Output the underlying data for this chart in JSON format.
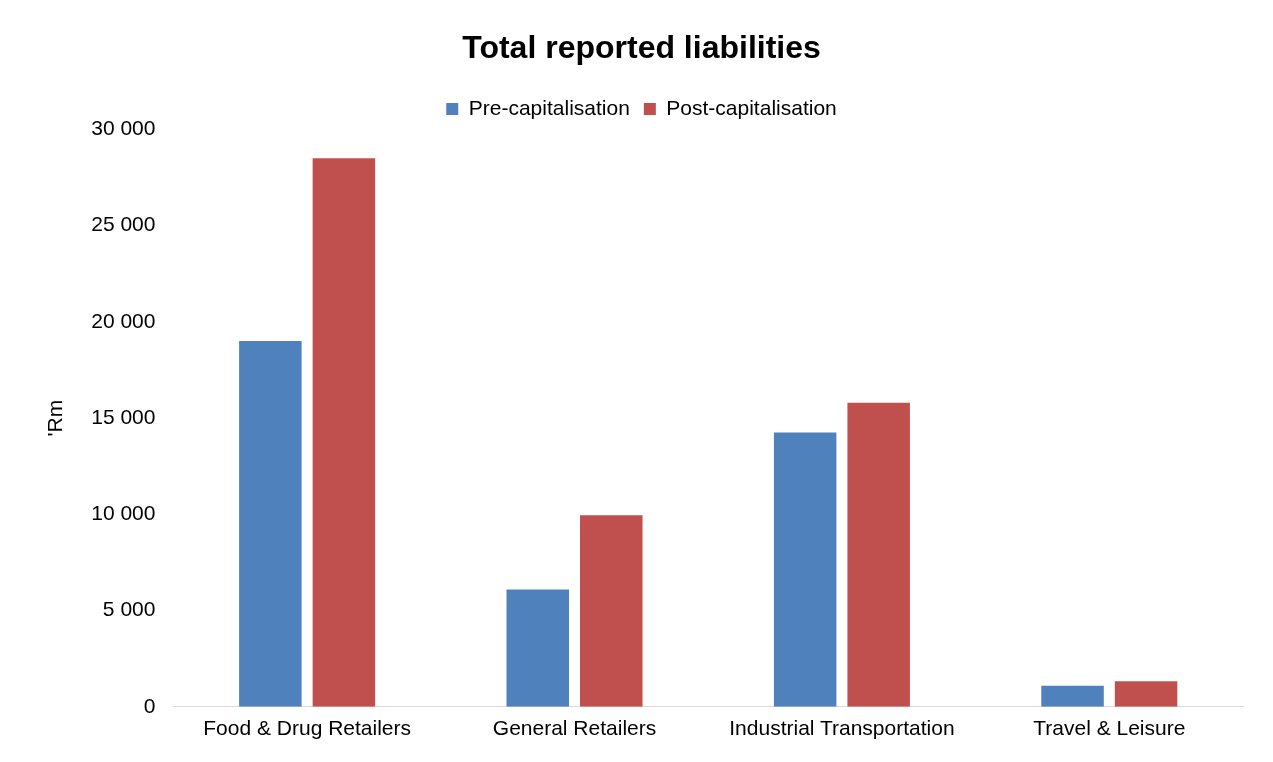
{
  "chart_data": {
    "type": "bar",
    "title": "Total reported liabilities",
    "ylabel": "'Rm",
    "categories": [
      "Food & Drug Retailers",
      "General Retailers",
      "Industrial Transportation",
      "Travel & Leisure"
    ],
    "series": [
      {
        "name": "Pre-capitalisation",
        "color": "#4f81bd",
        "values": [
          19000,
          6100,
          14250,
          1100
        ]
      },
      {
        "name": "Post-capitalisation",
        "color": "#c0504d",
        "values": [
          28500,
          9950,
          15800,
          1330
        ]
      }
    ],
    "ylim": [
      0,
      30000
    ],
    "yticks": [
      {
        "value": 0,
        "label": "0"
      },
      {
        "value": 5000,
        "label": "5 000"
      },
      {
        "value": 10000,
        "label": "10 000"
      },
      {
        "value": 15000,
        "label": "15 000"
      },
      {
        "value": 20000,
        "label": "20 000"
      },
      {
        "value": 25000,
        "label": "25 000"
      },
      {
        "value": 30000,
        "label": "30 000"
      }
    ],
    "grid": false,
    "legend": "top"
  }
}
